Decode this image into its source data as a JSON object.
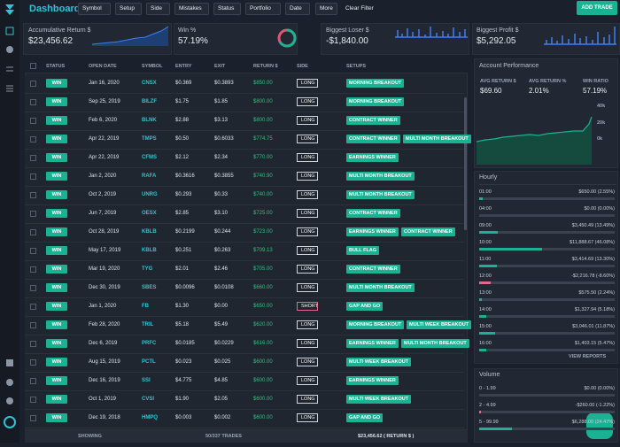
{
  "header": {
    "title": "Dashboard",
    "filters": [
      "Symbol",
      "Setup",
      "Side",
      "Mistakes",
      "Status",
      "Portfolio",
      "Date"
    ],
    "more": "More",
    "clear": "Clear Filter",
    "add": "ADD TRADE"
  },
  "stats": [
    {
      "label": "Accumulative Return $",
      "value": "$23,456.62"
    },
    {
      "label": "Win %",
      "value": "57.19%"
    },
    {
      "label": "Biggest Loser $",
      "value": "-$1,840.00"
    },
    {
      "label": "Biggest Profit $",
      "value": "$5,292.05"
    }
  ],
  "table": {
    "columns": [
      "STATUS",
      "OPEN DATE",
      "SYMBOL",
      "ENTRY",
      "EXIT",
      "RETURN $",
      "SIDE",
      "SETUPS"
    ],
    "rows": [
      {
        "status": "WIN",
        "open_date": "Jan 16, 2020",
        "symbol": "CNSX",
        "entry": "$0.369",
        "exit": "$0.3893",
        "return": "$850.00",
        "side": "LONG",
        "setups": [
          "MORNING BREAKOUT"
        ]
      },
      {
        "status": "WIN",
        "open_date": "Sep 25, 2019",
        "symbol": "BILZF",
        "entry": "$1.75",
        "exit": "$1.85",
        "return": "$800.00",
        "side": "LONG",
        "setups": [
          "MORNING BREAKOUT"
        ]
      },
      {
        "status": "WIN",
        "open_date": "Feb 6, 2020",
        "symbol": "BLNK",
        "entry": "$2.88",
        "exit": "$3.13",
        "return": "$800.00",
        "side": "LONG",
        "setups": [
          "CONTRACT WINNER"
        ]
      },
      {
        "status": "WIN",
        "open_date": "Apr 22, 2019",
        "symbol": "TMPS",
        "entry": "$0.50",
        "exit": "$0.6033",
        "return": "$774.75",
        "side": "LONG",
        "setups": [
          "CONTRACT WINNER",
          "MULTI MONTH BREAKOUT"
        ]
      },
      {
        "status": "WIN",
        "open_date": "Apr 22, 2019",
        "symbol": "CFMS",
        "entry": "$2.12",
        "exit": "$2.34",
        "return": "$770.00",
        "side": "LONG",
        "setups": [
          "EARNINGS WINNER"
        ]
      },
      {
        "status": "WIN",
        "open_date": "Jan 2, 2020",
        "symbol": "RAFA",
        "entry": "$0.3616",
        "exit": "$0.3855",
        "return": "$740.90",
        "side": "LONG",
        "setups": [
          "MULTI MONTH BREAKOUT"
        ]
      },
      {
        "status": "WIN",
        "open_date": "Oct 2, 2019",
        "symbol": "UNRG",
        "entry": "$0.293",
        "exit": "$0.33",
        "return": "$740.00",
        "side": "LONG",
        "setups": [
          "MULTI MONTH BREAKOUT"
        ]
      },
      {
        "status": "WIN",
        "open_date": "Jun 7, 2019",
        "symbol": "OESX",
        "entry": "$2.85",
        "exit": "$3.10",
        "return": "$725.00",
        "side": "LONG",
        "setups": [
          "CONTRACT WINNER"
        ]
      },
      {
        "status": "WIN",
        "open_date": "Oct 28, 2019",
        "symbol": "KBLB",
        "entry": "$0.2199",
        "exit": "$0.244",
        "return": "$723.00",
        "side": "LONG",
        "setups": [
          "EARNINGS WINNER",
          "CONTRACT WINNER"
        ]
      },
      {
        "status": "WIN",
        "open_date": "May 17, 2019",
        "symbol": "KBLB",
        "entry": "$0.251",
        "exit": "$0.263",
        "return": "$709.13",
        "side": "LONG",
        "setups": [
          "BULL FLAG"
        ]
      },
      {
        "status": "WIN",
        "open_date": "Mar 19, 2020",
        "symbol": "TYG",
        "entry": "$2.01",
        "exit": "$2.46",
        "return": "$705.00",
        "side": "LONG",
        "setups": [
          "CONTRACT WINNER"
        ]
      },
      {
        "status": "WIN",
        "open_date": "Dec 30, 2019",
        "symbol": "SBES",
        "entry": "$0.0096",
        "exit": "$0.0108",
        "return": "$660.00",
        "side": "LONG",
        "setups": [
          "MULTI MONTH BREAKOUT"
        ]
      },
      {
        "status": "WIN",
        "open_date": "Jan 1, 2020",
        "symbol": "FB",
        "entry": "$1.30",
        "exit": "$0.00",
        "return": "$650.00",
        "side": "SHORT",
        "setups": [
          "GAP AND GO"
        ]
      },
      {
        "status": "WIN",
        "open_date": "Feb 28, 2020",
        "symbol": "TRIL",
        "entry": "$5.18",
        "exit": "$5.49",
        "return": "$620.00",
        "side": "LONG",
        "setups": [
          "MORNING BREAKOUT",
          "MULTI WEEK BREAKOUT"
        ]
      },
      {
        "status": "WIN",
        "open_date": "Dec 6, 2019",
        "symbol": "PRFC",
        "entry": "$0.0185",
        "exit": "$0.0229",
        "return": "$616.00",
        "side": "LONG",
        "setups": [
          "EARNINGS WINNER",
          "MULTI MONTH BREAKOUT"
        ]
      },
      {
        "status": "WIN",
        "open_date": "Aug 15, 2019",
        "symbol": "PCTL",
        "entry": "$0.023",
        "exit": "$0.025",
        "return": "$600.00",
        "side": "LONG",
        "setups": [
          "MULTI WEEK BREAKOUT"
        ]
      },
      {
        "status": "WIN",
        "open_date": "Dec 16, 2019",
        "symbol": "SSI",
        "entry": "$4.775",
        "exit": "$4.85",
        "return": "$600.00",
        "side": "LONG",
        "setups": [
          "EARNINGS WINNER"
        ]
      },
      {
        "status": "WIN",
        "open_date": "Oct 1, 2019",
        "symbol": "CVSI",
        "entry": "$1.90",
        "exit": "$2.05",
        "return": "$600.00",
        "side": "LONG",
        "setups": [
          "MULTI WEEK BREAKOUT"
        ]
      },
      {
        "status": "WIN",
        "open_date": "Dec 19, 2018",
        "symbol": "HMPQ",
        "entry": "$0.003",
        "exit": "$0.002",
        "return": "$600.00",
        "side": "LONG",
        "setups": [
          "GAP AND GO"
        ]
      }
    ],
    "footer": {
      "showing": "SHOWING",
      "count": "50/337 TRADES",
      "total": "$23,456.62 ( RETURN $ )"
    }
  },
  "performance": {
    "title": "Account Performance",
    "metrics": [
      {
        "label": "AVG RETURN $",
        "value": "$69.60"
      },
      {
        "label": "AVG RETURN %",
        "value": "2.01%"
      },
      {
        "label": "WIN RATIO",
        "value": "57.19%"
      }
    ],
    "axis": [
      "40k",
      "20k",
      "0k"
    ]
  },
  "hourly": {
    "title": "Hourly",
    "rows": [
      {
        "label": "01:00",
        "text": "$650.00 (2.55%)",
        "percent": 2.55
      },
      {
        "label": "04:00",
        "text": "$0.00 (0.00%)",
        "percent": 0
      },
      {
        "label": "09:00",
        "text": "$3,450.49 (13.49%)",
        "percent": 13.49
      },
      {
        "label": "10:00",
        "text": "$11,888.67 (46.08%)",
        "percent": 46.08
      },
      {
        "label": "11:00",
        "text": "$3,414.69 (13.30%)",
        "percent": 13.3
      },
      {
        "label": "12:00",
        "text": "-$2,216.78 (-8.60%)",
        "percent": -8.6
      },
      {
        "label": "13:00",
        "text": "$575.50 (2.24%)",
        "percent": 2.24
      },
      {
        "label": "14:00",
        "text": "$1,327.94 (5.18%)",
        "percent": 5.18
      },
      {
        "label": "15:00",
        "text": "$3,046.01 (11.87%)",
        "percent": 11.87
      },
      {
        "label": "16:00",
        "text": "$1,403.15 (5.47%)",
        "percent": 5.47
      }
    ],
    "link": "VIEW REPORTS"
  },
  "volume": {
    "title": "Volume",
    "rows": [
      {
        "label": "0 - 1.99",
        "text": "$0.00 (0.00%)",
        "percent": 0
      },
      {
        "label": "2 - 4.99",
        "text": "-$260.00 (-1.22%)",
        "percent": -1.22
      },
      {
        "label": "5 - 99.99",
        "text": "$6,288.00 (24.47%)",
        "percent": 24.47
      }
    ]
  }
}
